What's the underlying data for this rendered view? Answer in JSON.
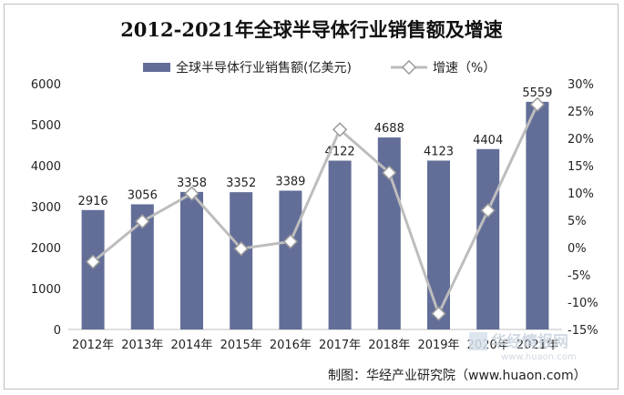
{
  "chart_data": {
    "type": "bar+line",
    "title": "2012-2021年全球半导体行业销售额及增速",
    "categories": [
      "2012年",
      "2013年",
      "2014年",
      "2015年",
      "2016年",
      "2017年",
      "2018年",
      "2019年",
      "2020年",
      "2021年"
    ],
    "series": [
      {
        "name": "全球半导体行业销售额(亿美元)",
        "type": "bar",
        "axis": "left",
        "values": [
          2916,
          3056,
          3358,
          3352,
          3389,
          4122,
          4688,
          4123,
          4404,
          5559
        ],
        "color": "#636e98"
      },
      {
        "name": "增速（%）",
        "type": "line",
        "axis": "right",
        "values": [
          -2.6,
          4.8,
          9.9,
          -0.2,
          1.1,
          21.6,
          13.7,
          -12.1,
          6.8,
          26.2
        ],
        "color": "#bdbdbd"
      }
    ],
    "left_axis": {
      "min": 0,
      "max": 6000,
      "step": 1000,
      "ticks": [
        "0",
        "1000",
        "2000",
        "3000",
        "4000",
        "5000",
        "6000"
      ]
    },
    "right_axis": {
      "min": -15,
      "max": 30,
      "step": 5,
      "ticks": [
        "-15%",
        "-10%",
        "-5%",
        "0%",
        "5%",
        "10%",
        "15%",
        "20%",
        "25%",
        "30%"
      ]
    },
    "grid": false,
    "legend_position": "top"
  },
  "footer": {
    "credit": "制图：华经产业研究院（www.huaon.com）"
  },
  "watermark": {
    "text": "华经情报网",
    "url": "www.huaon.com"
  }
}
